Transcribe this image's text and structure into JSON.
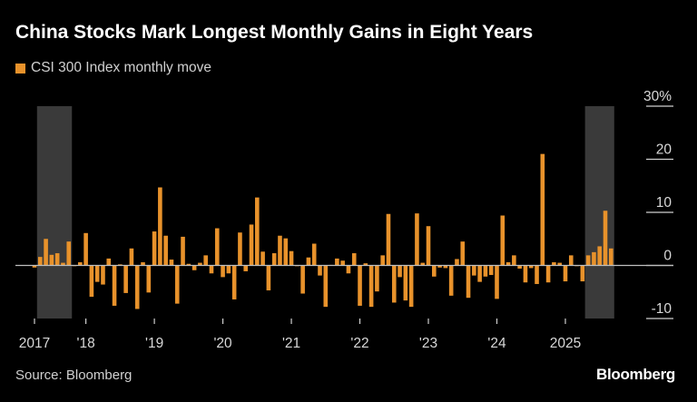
{
  "chart_data": {
    "type": "bar",
    "title": "China Stocks Mark Longest Monthly Gains in Eight Years",
    "legend": [
      {
        "name": "CSI 300 Index monthly move",
        "color": "#e8922b"
      }
    ],
    "legend_placement": "top-left",
    "x_frequency": "monthly",
    "x_start": "2017-04",
    "x_end": "2025-09",
    "x_tick_labels": [
      {
        "month": "2017-04",
        "label": "2017"
      },
      {
        "month": "2018-01",
        "label": "'18"
      },
      {
        "month": "2019-01",
        "label": "'19"
      },
      {
        "month": "2020-01",
        "label": "'20"
      },
      {
        "month": "2021-01",
        "label": "'21"
      },
      {
        "month": "2022-01",
        "label": "'22"
      },
      {
        "month": "2023-01",
        "label": "'23"
      },
      {
        "month": "2024-01",
        "label": "'24"
      },
      {
        "month": "2025-01",
        "label": "2025"
      }
    ],
    "values": [
      -0.4,
      1.6,
      5.0,
      2.0,
      2.3,
      0.5,
      4.5,
      -0.1,
      0.6,
      6.1,
      -5.9,
      -3.1,
      -3.6,
      1.3,
      -7.6,
      0.2,
      -5.2,
      3.2,
      -8.2,
      0.6,
      -5.1,
      6.4,
      14.7,
      5.6,
      1.1,
      -7.2,
      5.4,
      0.3,
      -0.9,
      0.5,
      1.9,
      -1.5,
      7.0,
      -2.2,
      -1.5,
      -6.4,
      6.2,
      -1.1,
      7.7,
      12.8,
      2.6,
      -4.7,
      2.3,
      5.6,
      5.1,
      2.7,
      -0.1,
      -5.3,
      1.5,
      4.1,
      -1.9,
      -7.8,
      0.1,
      1.3,
      0.9,
      -1.5,
      2.3,
      -7.6,
      0.4,
      -7.8,
      -4.9,
      1.9,
      9.7,
      -7.0,
      -2.2,
      -6.6,
      -7.8,
      9.8,
      0.5,
      7.4,
      -2.1,
      -0.4,
      -0.5,
      -5.7,
      1.2,
      4.5,
      -6.1,
      -1.9,
      -3.1,
      -2.1,
      -1.8,
      -6.3,
      9.4,
      0.6,
      1.9,
      -0.6,
      -3.2,
      -0.5,
      -3.5,
      21.0,
      -3.2,
      0.6,
      0.5,
      -3.0,
      1.9,
      -0.1,
      -3.0,
      1.9,
      2.5,
      3.6,
      10.3,
      3.2
    ],
    "ylim": [
      -10,
      30
    ],
    "y_ticks": [
      30,
      20,
      10,
      0,
      -10
    ],
    "y_tick_labels": [
      "30%",
      "20",
      "10",
      "0",
      "-10"
    ],
    "y_axis_side": "right",
    "grid": false,
    "highlight_ranges": [
      [
        "2017-05",
        "2017-10"
      ],
      [
        "2025-05",
        "2025-09"
      ]
    ],
    "bar_color": "#e8922b",
    "highlight_color": "#3a3a3a"
  },
  "footer": {
    "source": "Source: Bloomberg",
    "logo": "Bloomberg"
  }
}
